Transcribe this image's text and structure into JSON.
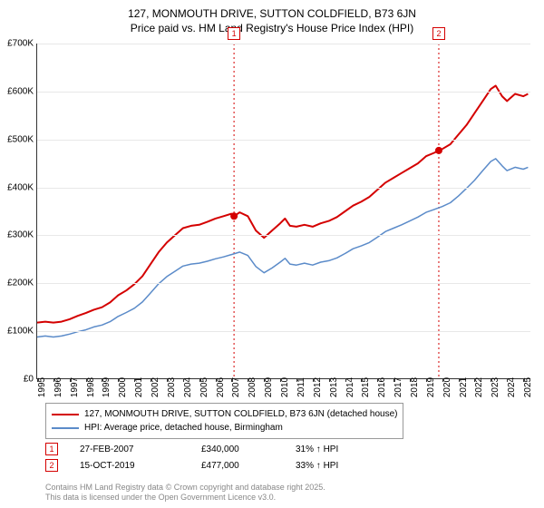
{
  "title_line1": "127, MONMOUTH DRIVE, SUTTON COLDFIELD, B73 6JN",
  "title_line2": "Price paid vs. HM Land Registry's House Price Index (HPI)",
  "chart": {
    "type": "line",
    "background_color": "#ffffff",
    "grid_color": "#e8e8e8",
    "axis_color": "#333333",
    "tick_fontsize": 10,
    "ylim": [
      0,
      700000
    ],
    "ytick_step": 100000,
    "ytick_labels": [
      "£0",
      "£100K",
      "£200K",
      "£300K",
      "£400K",
      "£500K",
      "£600K",
      "£700K"
    ],
    "xlim": [
      1995,
      2025.5
    ],
    "xticks": [
      1995,
      1996,
      1997,
      1998,
      1999,
      2000,
      2001,
      2002,
      2003,
      2004,
      2005,
      2006,
      2007,
      2008,
      2009,
      2010,
      2011,
      2012,
      2013,
      2014,
      2015,
      2016,
      2017,
      2018,
      2019,
      2020,
      2021,
      2022,
      2023,
      2024,
      2025
    ],
    "series": [
      {
        "name": "price_paid",
        "label": "127, MONMOUTH DRIVE, SUTTON COLDFIELD, B73 6JN (detached house)",
        "color": "#d40000",
        "line_width": 2,
        "data": [
          [
            1995,
            118000
          ],
          [
            1995.5,
            120000
          ],
          [
            1996,
            118000
          ],
          [
            1996.5,
            120000
          ],
          [
            1997,
            125000
          ],
          [
            1997.5,
            132000
          ],
          [
            1998,
            138000
          ],
          [
            1998.5,
            145000
          ],
          [
            1999,
            150000
          ],
          [
            1999.5,
            160000
          ],
          [
            2000,
            175000
          ],
          [
            2000.5,
            185000
          ],
          [
            2001,
            198000
          ],
          [
            2001.5,
            215000
          ],
          [
            2002,
            240000
          ],
          [
            2002.5,
            265000
          ],
          [
            2003,
            285000
          ],
          [
            2003.5,
            300000
          ],
          [
            2004,
            315000
          ],
          [
            2004.5,
            320000
          ],
          [
            2005,
            322000
          ],
          [
            2005.5,
            328000
          ],
          [
            2006,
            335000
          ],
          [
            2006.5,
            340000
          ],
          [
            2007,
            345000
          ],
          [
            2007.15,
            340000
          ],
          [
            2007.5,
            348000
          ],
          [
            2008,
            340000
          ],
          [
            2008.5,
            310000
          ],
          [
            2009,
            295000
          ],
          [
            2009.5,
            310000
          ],
          [
            2010,
            325000
          ],
          [
            2010.3,
            335000
          ],
          [
            2010.6,
            320000
          ],
          [
            2011,
            318000
          ],
          [
            2011.5,
            322000
          ],
          [
            2012,
            318000
          ],
          [
            2012.5,
            325000
          ],
          [
            2013,
            330000
          ],
          [
            2013.5,
            338000
          ],
          [
            2014,
            350000
          ],
          [
            2014.5,
            362000
          ],
          [
            2015,
            370000
          ],
          [
            2015.5,
            380000
          ],
          [
            2016,
            395000
          ],
          [
            2016.5,
            410000
          ],
          [
            2017,
            420000
          ],
          [
            2017.5,
            430000
          ],
          [
            2018,
            440000
          ],
          [
            2018.5,
            450000
          ],
          [
            2019,
            465000
          ],
          [
            2019.5,
            472000
          ],
          [
            2019.79,
            477000
          ],
          [
            2020,
            480000
          ],
          [
            2020.5,
            490000
          ],
          [
            2021,
            510000
          ],
          [
            2021.5,
            530000
          ],
          [
            2022,
            555000
          ],
          [
            2022.5,
            580000
          ],
          [
            2023,
            605000
          ],
          [
            2023.3,
            612000
          ],
          [
            2023.7,
            590000
          ],
          [
            2024,
            580000
          ],
          [
            2024.5,
            595000
          ],
          [
            2025,
            590000
          ],
          [
            2025.3,
            595000
          ]
        ]
      },
      {
        "name": "hpi",
        "label": "HPI: Average price, detached house, Birmingham",
        "color": "#5b8bc9",
        "line_width": 1.5,
        "data": [
          [
            1995,
            88000
          ],
          [
            1995.5,
            90000
          ],
          [
            1996,
            88000
          ],
          [
            1996.5,
            90000
          ],
          [
            1997,
            94000
          ],
          [
            1997.5,
            99000
          ],
          [
            1998,
            103000
          ],
          [
            1998.5,
            109000
          ],
          [
            1999,
            113000
          ],
          [
            1999.5,
            120000
          ],
          [
            2000,
            131000
          ],
          [
            2000.5,
            139000
          ],
          [
            2001,
            148000
          ],
          [
            2001.5,
            161000
          ],
          [
            2002,
            180000
          ],
          [
            2002.5,
            199000
          ],
          [
            2003,
            214000
          ],
          [
            2003.5,
            225000
          ],
          [
            2004,
            236000
          ],
          [
            2004.5,
            240000
          ],
          [
            2005,
            242000
          ],
          [
            2005.5,
            246000
          ],
          [
            2006,
            251000
          ],
          [
            2006.5,
            255000
          ],
          [
            2007,
            260000
          ],
          [
            2007.5,
            265000
          ],
          [
            2008,
            258000
          ],
          [
            2008.5,
            235000
          ],
          [
            2009,
            222000
          ],
          [
            2009.5,
            232000
          ],
          [
            2010,
            244000
          ],
          [
            2010.3,
            252000
          ],
          [
            2010.6,
            240000
          ],
          [
            2011,
            238000
          ],
          [
            2011.5,
            242000
          ],
          [
            2012,
            238000
          ],
          [
            2012.5,
            244000
          ],
          [
            2013,
            247000
          ],
          [
            2013.5,
            253000
          ],
          [
            2014,
            262000
          ],
          [
            2014.5,
            272000
          ],
          [
            2015,
            278000
          ],
          [
            2015.5,
            285000
          ],
          [
            2016,
            296000
          ],
          [
            2016.5,
            308000
          ],
          [
            2017,
            315000
          ],
          [
            2017.5,
            322000
          ],
          [
            2018,
            330000
          ],
          [
            2018.5,
            338000
          ],
          [
            2019,
            348000
          ],
          [
            2019.5,
            354000
          ],
          [
            2020,
            360000
          ],
          [
            2020.5,
            368000
          ],
          [
            2021,
            382000
          ],
          [
            2021.5,
            398000
          ],
          [
            2022,
            415000
          ],
          [
            2022.5,
            435000
          ],
          [
            2023,
            454000
          ],
          [
            2023.3,
            460000
          ],
          [
            2023.7,
            445000
          ],
          [
            2024,
            435000
          ],
          [
            2024.5,
            442000
          ],
          [
            2025,
            438000
          ],
          [
            2025.3,
            442000
          ]
        ]
      }
    ],
    "sale_markers": [
      {
        "id": "1",
        "x": 2007.15,
        "y": 340000,
        "color": "#d40000"
      },
      {
        "id": "2",
        "x": 2019.79,
        "y": 477000,
        "color": "#d40000"
      }
    ],
    "vline_color": "#d40000",
    "vline_dash": "2,3",
    "marker_box_top_offset": -18
  },
  "legend": {
    "border_color": "#999999",
    "fontsize": 10
  },
  "sales_table": {
    "rows": [
      {
        "id": "1",
        "date": "27-FEB-2007",
        "price": "£340,000",
        "delta": "31% ↑ HPI",
        "box_color": "#d40000"
      },
      {
        "id": "2",
        "date": "15-OCT-2019",
        "price": "£477,000",
        "delta": "33% ↑ HPI",
        "box_color": "#d40000"
      }
    ]
  },
  "footer": {
    "line1": "Contains HM Land Registry data © Crown copyright and database right 2025.",
    "line2": "This data is licensed under the Open Government Licence v3.0.",
    "color": "#888888"
  }
}
